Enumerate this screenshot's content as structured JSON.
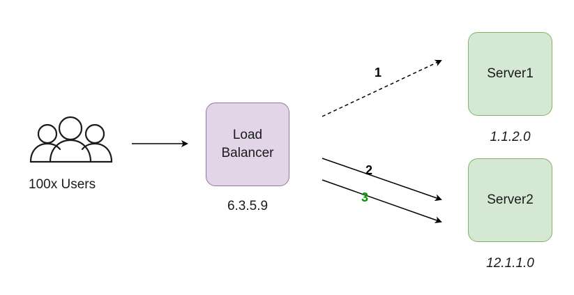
{
  "users": {
    "label": "100x Users",
    "icon": "users-group-icon"
  },
  "load_balancer": {
    "label_line1": "Load",
    "label_line2": "Balancer",
    "ip": "6.3.5.9",
    "fill": "#e1d5e7",
    "stroke": "#9673a6"
  },
  "servers": [
    {
      "label": "Server1",
      "ip": "1.1.2.0",
      "fill": "#d5e8d4",
      "stroke": "#82b366"
    },
    {
      "label": "Server2",
      "ip": "12.1.1.0",
      "fill": "#d5e8d4",
      "stroke": "#82b366"
    }
  ],
  "connections": [
    {
      "label": "1",
      "style": "dashed",
      "target": "Server1",
      "label_color": "#000000"
    },
    {
      "label": "2",
      "style": "solid",
      "target": "Server2",
      "label_color": "#000000"
    },
    {
      "label": "3",
      "style": "solid",
      "target": "Server2",
      "label_color": "#009900"
    }
  ]
}
